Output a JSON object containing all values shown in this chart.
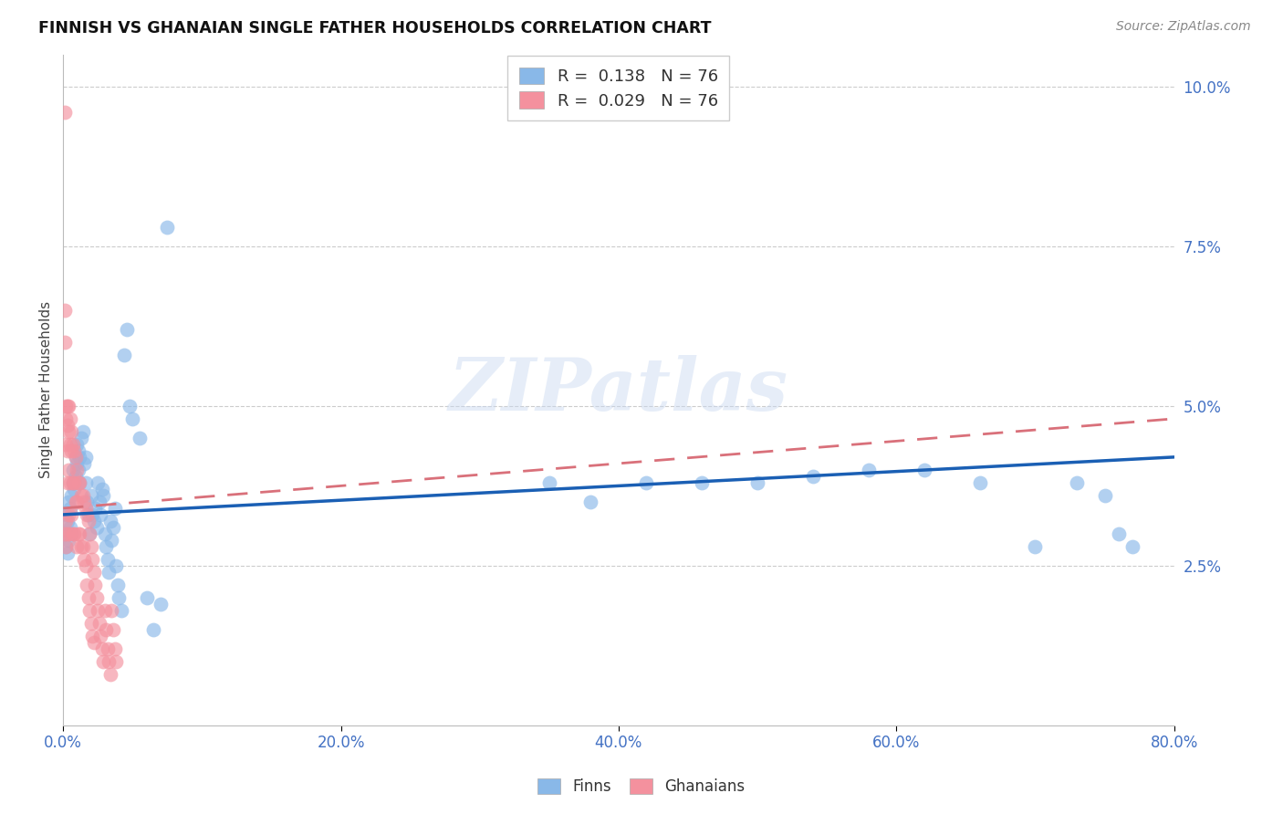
{
  "title": "FINNISH VS GHANAIAN SINGLE FATHER HOUSEHOLDS CORRELATION CHART",
  "source": "Source: ZipAtlas.com",
  "ylabel": "Single Father Households",
  "xlim": [
    0.0,
    0.8
  ],
  "ylim": [
    0.0,
    0.105
  ],
  "yticks": [
    0.025,
    0.05,
    0.075,
    0.1
  ],
  "xticks": [
    0.0,
    0.2,
    0.4,
    0.6,
    0.8
  ],
  "finns_color": "#89b8e8",
  "ghanaians_color": "#f4919e",
  "finns_line_color": "#1a5fb4",
  "ghanaians_line_color": "#d9707a",
  "tick_color": "#4472c4",
  "watermark": "ZIPatlas",
  "finns_R": 0.138,
  "ghanaians_R": 0.029,
  "N": 76,
  "finns_line_x": [
    0.0,
    0.8
  ],
  "finns_line_y": [
    0.033,
    0.042
  ],
  "ghanaians_line_x": [
    0.0,
    0.8
  ],
  "ghanaians_line_y": [
    0.034,
    0.048
  ],
  "finns_x": [
    0.001,
    0.002,
    0.002,
    0.003,
    0.003,
    0.004,
    0.004,
    0.005,
    0.005,
    0.006,
    0.006,
    0.007,
    0.007,
    0.008,
    0.008,
    0.009,
    0.009,
    0.01,
    0.01,
    0.011,
    0.011,
    0.012,
    0.012,
    0.013,
    0.014,
    0.015,
    0.016,
    0.016,
    0.017,
    0.018,
    0.019,
    0.02,
    0.021,
    0.022,
    0.023,
    0.024,
    0.025,
    0.026,
    0.027,
    0.028,
    0.029,
    0.03,
    0.031,
    0.032,
    0.033,
    0.034,
    0.035,
    0.036,
    0.037,
    0.038,
    0.039,
    0.04,
    0.042,
    0.044,
    0.046,
    0.048,
    0.05,
    0.055,
    0.06,
    0.065,
    0.07,
    0.075,
    0.35,
    0.38,
    0.42,
    0.46,
    0.5,
    0.54,
    0.58,
    0.62,
    0.66,
    0.7,
    0.73,
    0.75,
    0.76,
    0.77
  ],
  "finns_y": [
    0.03,
    0.028,
    0.033,
    0.027,
    0.032,
    0.029,
    0.035,
    0.031,
    0.034,
    0.03,
    0.036,
    0.038,
    0.04,
    0.037,
    0.038,
    0.042,
    0.039,
    0.041,
    0.044,
    0.043,
    0.04,
    0.042,
    0.038,
    0.045,
    0.046,
    0.041,
    0.042,
    0.038,
    0.035,
    0.033,
    0.03,
    0.036,
    0.033,
    0.032,
    0.034,
    0.031,
    0.038,
    0.035,
    0.033,
    0.037,
    0.036,
    0.03,
    0.028,
    0.026,
    0.024,
    0.032,
    0.029,
    0.031,
    0.034,
    0.025,
    0.022,
    0.02,
    0.018,
    0.058,
    0.062,
    0.05,
    0.048,
    0.045,
    0.02,
    0.015,
    0.019,
    0.078,
    0.038,
    0.035,
    0.038,
    0.038,
    0.038,
    0.039,
    0.04,
    0.04,
    0.038,
    0.028,
    0.038,
    0.036,
    0.03,
    0.028
  ],
  "ghanaians_x": [
    0.001,
    0.001,
    0.001,
    0.001,
    0.002,
    0.002,
    0.002,
    0.002,
    0.002,
    0.003,
    0.003,
    0.003,
    0.003,
    0.003,
    0.004,
    0.004,
    0.004,
    0.004,
    0.005,
    0.005,
    0.005,
    0.005,
    0.006,
    0.006,
    0.006,
    0.007,
    0.007,
    0.007,
    0.008,
    0.008,
    0.008,
    0.009,
    0.009,
    0.01,
    0.01,
    0.01,
    0.011,
    0.011,
    0.012,
    0.012,
    0.013,
    0.013,
    0.014,
    0.014,
    0.015,
    0.015,
    0.016,
    0.016,
    0.017,
    0.017,
    0.018,
    0.018,
    0.019,
    0.019,
    0.02,
    0.02,
    0.021,
    0.021,
    0.022,
    0.022,
    0.023,
    0.024,
    0.025,
    0.026,
    0.027,
    0.028,
    0.029,
    0.03,
    0.031,
    0.032,
    0.033,
    0.034,
    0.035,
    0.036,
    0.037,
    0.038
  ],
  "ghanaians_y": [
    0.096,
    0.065,
    0.06,
    0.03,
    0.05,
    0.048,
    0.044,
    0.032,
    0.028,
    0.05,
    0.047,
    0.043,
    0.038,
    0.03,
    0.05,
    0.046,
    0.04,
    0.033,
    0.048,
    0.044,
    0.038,
    0.03,
    0.046,
    0.043,
    0.033,
    0.044,
    0.038,
    0.03,
    0.043,
    0.038,
    0.03,
    0.042,
    0.035,
    0.04,
    0.035,
    0.028,
    0.038,
    0.03,
    0.038,
    0.03,
    0.036,
    0.028,
    0.036,
    0.028,
    0.035,
    0.026,
    0.034,
    0.025,
    0.033,
    0.022,
    0.032,
    0.02,
    0.03,
    0.018,
    0.028,
    0.016,
    0.026,
    0.014,
    0.024,
    0.013,
    0.022,
    0.02,
    0.018,
    0.016,
    0.014,
    0.012,
    0.01,
    0.018,
    0.015,
    0.012,
    0.01,
    0.008,
    0.018,
    0.015,
    0.012,
    0.01
  ]
}
